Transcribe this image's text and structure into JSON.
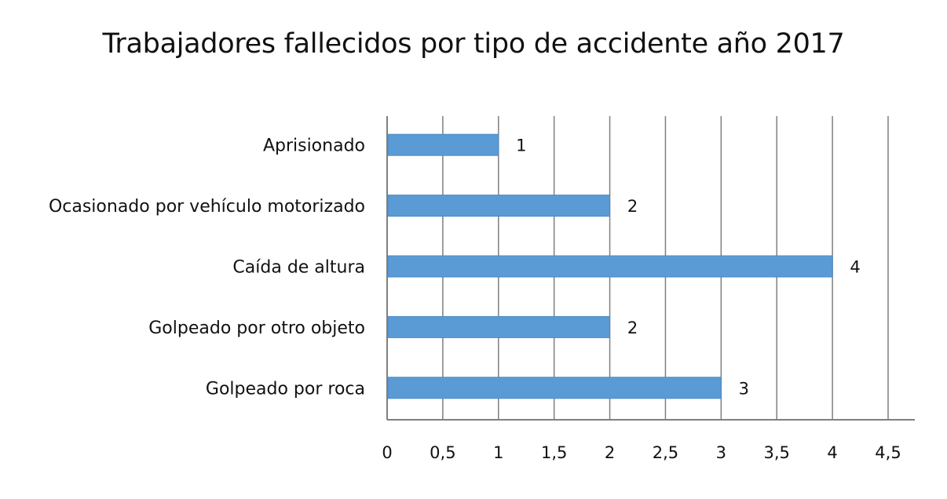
{
  "chart_data": {
    "type": "bar",
    "orientation": "horizontal",
    "title": "Trabajadores fallecidos por tipo de accidente año 2017",
    "categories": [
      "Aprisionado",
      "Ocasionado por vehículo motorizado",
      "Caída de altura",
      "Golpeado por otro objeto",
      "Golpeado por roca"
    ],
    "values": [
      1,
      2,
      4,
      2,
      3
    ],
    "data_labels": [
      "1",
      "2",
      "4",
      "2",
      "3"
    ],
    "xlim": [
      0,
      4.5
    ],
    "x_ticks": [
      "0",
      "0,5",
      "1",
      "1,5",
      "2",
      "2,5",
      "3",
      "3,5",
      "4",
      "4,5"
    ],
    "grid": "vertical",
    "legend": "none",
    "colors": {
      "bar": "#5b9bd5",
      "grid": "#7f7f7f",
      "axis": "#7f7f7f"
    }
  }
}
